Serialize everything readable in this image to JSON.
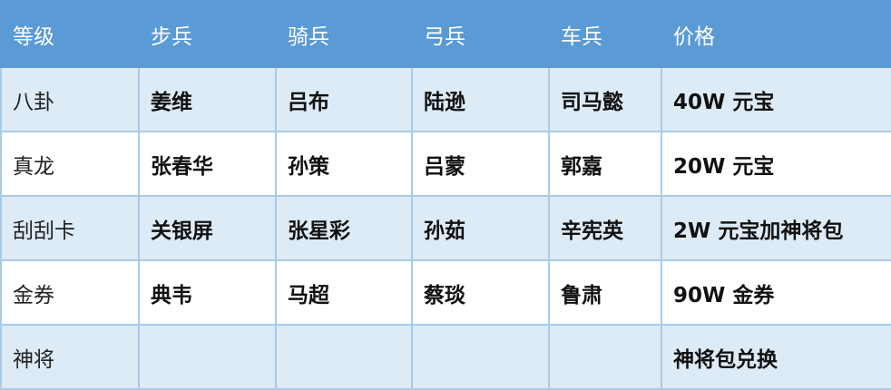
{
  "headers": [
    "等级",
    "步兵",
    "骑兵",
    "弓兵",
    "车兵",
    "价格"
  ],
  "rows": [
    [
      "八卦",
      "姜维",
      "吕布",
      "陆逊",
      "司马懿",
      "40W  元宝"
    ],
    [
      "真龙",
      "张春华",
      "孙策",
      "吕蒙",
      "郭嘉",
      "20W  元宝"
    ],
    [
      "刮刮卡",
      "关银屏",
      "张星彩",
      "孙茹",
      "辛宪英",
      "2W  元宝加神将包"
    ],
    [
      "金券",
      "典韦",
      "马超",
      "蔡琰",
      "鲁肃",
      "90W  金券"
    ],
    [
      "神将",
      "",
      "",
      "",
      "",
      "神将包兑换"
    ]
  ],
  "colors": {
    "header_bg": "#5b9bd5",
    "row_alt_bg": "#ddebf7",
    "border": "#a9cbe8"
  }
}
